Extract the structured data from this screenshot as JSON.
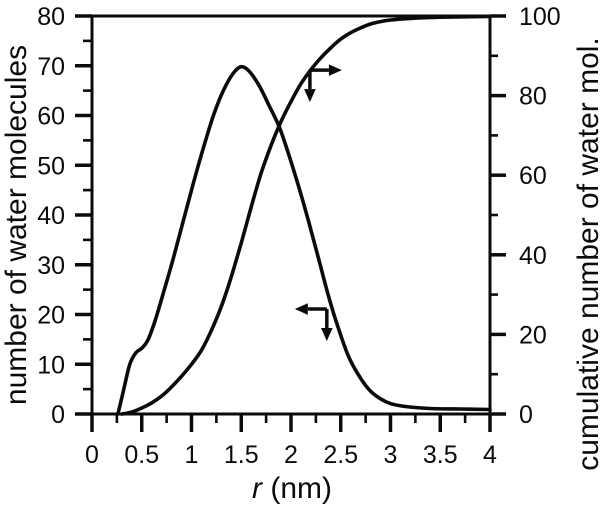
{
  "figure": {
    "background": "#ffffff",
    "line_color": "#0b0b0b"
  },
  "chart_data": {
    "type": "line",
    "title": "",
    "xlabel": "r (nm)",
    "xlabel_parts": {
      "italic": "r",
      "rest": " (nm)"
    },
    "ylabel_left": "number of water molecules",
    "ylabel_right": "cumulative number of water mol.",
    "grid": false,
    "legend": null,
    "x_axis": {
      "min": 0,
      "max": 4,
      "major_step": 0.5,
      "minor_step": 0.25,
      "tick_labels": [
        "0",
        "0.5",
        "1",
        "1.5",
        "2",
        "2.5",
        "3",
        "3.5",
        "4"
      ]
    },
    "y_axis_left": {
      "min": 0,
      "max": 80,
      "major_step": 10,
      "minor_step": 5,
      "tick_labels": [
        "0",
        "10",
        "20",
        "30",
        "40",
        "50",
        "60",
        "70",
        "80"
      ]
    },
    "y_axis_right": {
      "min": 0,
      "max": 100,
      "major_step": 20,
      "minor_step": 10,
      "tick_labels": [
        "0",
        "20",
        "40",
        "60",
        "80",
        "100"
      ]
    },
    "series": [
      {
        "name": "number of water molecules",
        "axis": "left",
        "points": [
          [
            0.26,
            0
          ],
          [
            0.32,
            5
          ],
          [
            0.38,
            10
          ],
          [
            0.44,
            12.3
          ],
          [
            0.5,
            13.2
          ],
          [
            0.56,
            14.8
          ],
          [
            0.63,
            18.5
          ],
          [
            0.72,
            24.5
          ],
          [
            0.82,
            31.5
          ],
          [
            0.92,
            39
          ],
          [
            1.02,
            46.5
          ],
          [
            1.12,
            53.5
          ],
          [
            1.22,
            60
          ],
          [
            1.32,
            65
          ],
          [
            1.42,
            68.5
          ],
          [
            1.5,
            69.8
          ],
          [
            1.58,
            68.9
          ],
          [
            1.68,
            66
          ],
          [
            1.78,
            62
          ],
          [
            1.88,
            57.8
          ],
          [
            1.98,
            52
          ],
          [
            2.08,
            45.5
          ],
          [
            2.18,
            38.5
          ],
          [
            2.28,
            31
          ],
          [
            2.38,
            23.5
          ],
          [
            2.48,
            17
          ],
          [
            2.58,
            11.5
          ],
          [
            2.68,
            7.8
          ],
          [
            2.78,
            5
          ],
          [
            2.88,
            3.3
          ],
          [
            3.0,
            2.1
          ],
          [
            3.15,
            1.5
          ],
          [
            3.4,
            1.1
          ],
          [
            3.7,
            1.0
          ],
          [
            4.0,
            0.9
          ]
        ]
      },
      {
        "name": "cumulative number of water molecules",
        "axis": "right",
        "points": [
          [
            0.3,
            0
          ],
          [
            0.4,
            0.5
          ],
          [
            0.5,
            1.5
          ],
          [
            0.6,
            2.8
          ],
          [
            0.7,
            4.5
          ],
          [
            0.8,
            6.8
          ],
          [
            0.9,
            9.5
          ],
          [
            1.0,
            12.5
          ],
          [
            1.1,
            16
          ],
          [
            1.2,
            21
          ],
          [
            1.3,
            27
          ],
          [
            1.4,
            34.5
          ],
          [
            1.5,
            43
          ],
          [
            1.6,
            52
          ],
          [
            1.7,
            60.5
          ],
          [
            1.8,
            67.5
          ],
          [
            1.9,
            73.5
          ],
          [
            2.0,
            78.5
          ],
          [
            2.1,
            83
          ],
          [
            2.2,
            86.5
          ],
          [
            2.3,
            89.5
          ],
          [
            2.4,
            92
          ],
          [
            2.5,
            94.2
          ],
          [
            2.6,
            95.8
          ],
          [
            2.7,
            97
          ],
          [
            2.8,
            98
          ],
          [
            2.9,
            98.6
          ],
          [
            3.0,
            99
          ],
          [
            3.2,
            99.4
          ],
          [
            3.5,
            99.7
          ],
          [
            4.0,
            99.9
          ]
        ]
      }
    ],
    "annotations": [
      {
        "name": "right-axis-pointer",
        "meaning": "arrow marking cumulative curve, pointing toward right axis",
        "x": 2.19,
        "y": 86.4,
        "axis": "right",
        "directions": [
          "right",
          "down"
        ]
      },
      {
        "name": "left-axis-pointer",
        "meaning": "arrow marking distribution curve, pointing toward left axis",
        "x": 2.36,
        "y": 21.1,
        "axis": "left",
        "directions": [
          "left",
          "down"
        ]
      }
    ]
  }
}
